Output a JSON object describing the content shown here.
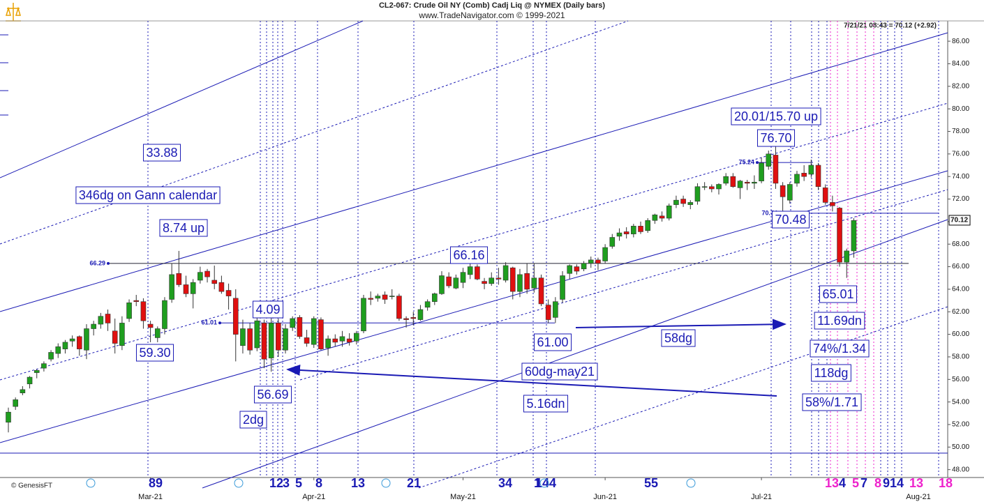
{
  "chart_data": {
    "type": "candlestick",
    "title": "CL2-067:  Crude Oil NY (Comb) Cadj Liq @ NYMEX  (Daily bars)",
    "subtitle": "www.TradeNavigator.com © 1999-2021",
    "last_quote": "7/21/21 08:43 = 70.12 (+2.92)",
    "credit": "© GenesisFT",
    "up_color": "#1f9e1f",
    "down_color": "#e01010",
    "ylim": [
      47.3,
      87.8
    ],
    "yticks": [
      {
        "value": 48,
        "label": "48.00"
      },
      {
        "value": 50,
        "label": "50.00"
      },
      {
        "value": 52,
        "label": "52.00"
      },
      {
        "value": 54,
        "label": "54.00"
      },
      {
        "value": 56,
        "label": "56.00"
      },
      {
        "value": 58,
        "label": "58.00"
      },
      {
        "value": 60,
        "label": "60.00"
      },
      {
        "value": 62,
        "label": "62.00"
      },
      {
        "value": 64,
        "label": "64.00"
      },
      {
        "value": 66,
        "label": "66.00"
      },
      {
        "value": 68,
        "label": "68.00"
      },
      {
        "value": 70,
        "label": "70.00"
      },
      {
        "value": 72,
        "label": "72.00"
      },
      {
        "value": 74,
        "label": "74.00"
      },
      {
        "value": 76,
        "label": "76.00"
      },
      {
        "value": 78,
        "label": "78.00"
      },
      {
        "value": 80,
        "label": "80.00"
      },
      {
        "value": 82,
        "label": "82.00"
      },
      {
        "value": 84,
        "label": "84.00"
      },
      {
        "value": 86,
        "label": "86.00"
      }
    ],
    "last_price": 70.12,
    "levels": [
      66.29,
      61.01,
      75.24,
      70.74
    ],
    "categories": [
      null,
      null,
      null,
      null,
      null,
      null,
      null,
      null,
      null,
      null,
      null,
      null,
      null,
      null,
      null,
      null,
      null,
      null,
      null,
      null,
      "Mar-21",
      null,
      null,
      null,
      null,
      null,
      null,
      null,
      null,
      null,
      null,
      null,
      null,
      null,
      null,
      null,
      null,
      null,
      null,
      null,
      null,
      null,
      null,
      "Apr-21",
      null,
      null,
      null,
      null,
      null,
      null,
      null,
      null,
      null,
      null,
      null,
      null,
      null,
      null,
      null,
      null,
      null,
      null,
      null,
      null,
      "May-21",
      null,
      null,
      null,
      null,
      null,
      null,
      null,
      null,
      null,
      null,
      null,
      null,
      null,
      null,
      null,
      null,
      null,
      null,
      null,
      "Jun-21",
      null,
      null,
      null,
      null,
      null,
      null,
      null,
      null,
      null,
      null,
      null,
      null,
      null,
      null,
      null,
      null,
      null,
      null,
      null,
      null,
      null,
      "Jul-21",
      null,
      null,
      null,
      null,
      null,
      null,
      null,
      null,
      null,
      null,
      null,
      null,
      null
    ],
    "extra_month_label": "Aug-21",
    "open": [
      52.2,
      53.6,
      54.8,
      55.6,
      56.6,
      57.0,
      57.8,
      58.3,
      58.7,
      59.4,
      59.8,
      58.6,
      60.5,
      60.9,
      61.8,
      60.3,
      59.0,
      61.4,
      63.0,
      62.9,
      60.9,
      59.7,
      60.5,
      63.1,
      65.4,
      64.4,
      63.6,
      64.8,
      65.6,
      64.8,
      64.6,
      63.9,
      63.2,
      59.0,
      60.5,
      58.8,
      61.0,
      57.9,
      61.0,
      58.6,
      60.6,
      61.5,
      59.7,
      59.1,
      61.3,
      58.8,
      59.6,
      59.4,
      59.6,
      59.4,
      60.3,
      63.2,
      63.2,
      63.5,
      63.4,
      63.4,
      61.4,
      61.5,
      61.3,
      62.4,
      62.9,
      63.6,
      65.1,
      64.1,
      64.6,
      65.3,
      66.0,
      64.7,
      64.5,
      65.0,
      64.8,
      65.9,
      63.8,
      65.4,
      64.1,
      65.0,
      62.6,
      61.5,
      63.1,
      65.4,
      66.0,
      65.8,
      66.3,
      66.6,
      66.5,
      67.8,
      68.7,
      69.1,
      68.9,
      69.6,
      69.2,
      70.1,
      70.5,
      70.3,
      71.5,
      72.0,
      71.5,
      71.8,
      73.1,
      73.1,
      72.9,
      73.4,
      74.0,
      73.0,
      73.5,
      73.4,
      73.6,
      74.9,
      75.9,
      73.2,
      71.9,
      73.4,
      74.3,
      74.2,
      75.0,
      73.0,
      71.7,
      71.2,
      66.4,
      67.4
    ],
    "high": [
      53.5,
      54.4,
      55.4,
      56.3,
      56.9,
      57.6,
      58.6,
      59.2,
      59.5,
      59.9,
      59.9,
      60.9,
      61.2,
      61.9,
      62.2,
      61.4,
      61.6,
      63.1,
      63.5,
      63.2,
      61.2,
      60.7,
      63.3,
      66.3,
      67.4,
      65.2,
      64.9,
      66.0,
      65.8,
      66.1,
      65.2,
      64.5,
      64.0,
      61.3,
      61.0,
      61.5,
      61.3,
      61.5,
      61.4,
      60.9,
      61.6,
      61.7,
      60.4,
      61.6,
      61.5,
      59.9,
      60.0,
      60.3,
      60.1,
      60.3,
      63.5,
      63.8,
      63.6,
      63.8,
      64.0,
      63.6,
      61.6,
      62.0,
      62.6,
      63.1,
      63.7,
      65.6,
      65.5,
      65.3,
      65.9,
      66.5,
      66.2,
      65.0,
      65.5,
      65.9,
      66.4,
      66.0,
      65.8,
      66.3,
      66.3,
      65.3,
      63.1,
      63.3,
      65.6,
      66.2,
      66.2,
      66.5,
      66.9,
      66.8,
      68.0,
      68.9,
      69.4,
      69.5,
      69.8,
      70.0,
      70.3,
      70.7,
      70.9,
      71.6,
      72.3,
      72.3,
      71.9,
      73.4,
      73.5,
      73.3,
      73.4,
      74.3,
      74.3,
      73.7,
      73.7,
      74.1,
      75.7,
      76.3,
      76.7,
      73.5,
      73.5,
      74.5,
      75.0,
      75.5,
      75.2,
      73.3,
      72.3,
      71.3,
      67.6,
      70.3
    ],
    "low": [
      51.3,
      53.3,
      54.6,
      55.2,
      56.1,
      56.7,
      57.6,
      57.9,
      58.3,
      58.9,
      58.1,
      57.8,
      59.9,
      60.5,
      60.3,
      58.3,
      58.6,
      61.1,
      62.5,
      60.5,
      59.3,
      59.3,
      60.0,
      62.8,
      64.2,
      63.3,
      62.3,
      64.5,
      64.6,
      64.0,
      63.6,
      62.2,
      57.6,
      58.3,
      58.2,
      58.5,
      57.0,
      56.69,
      58.0,
      58.3,
      60.3,
      59.6,
      58.9,
      58.8,
      58.6,
      58.1,
      58.9,
      58.9,
      59.0,
      59.1,
      60.1,
      62.6,
      62.9,
      62.7,
      63.1,
      61.2,
      60.6,
      60.8,
      61.2,
      62.1,
      62.6,
      63.5,
      64.1,
      64.0,
      64.1,
      64.9,
      64.8,
      64.0,
      64.3,
      64.4,
      64.6,
      63.1,
      63.3,
      63.6,
      63.7,
      62.5,
      61.0,
      61.0,
      62.8,
      64.9,
      65.3,
      65.6,
      65.9,
      65.7,
      66.3,
      67.6,
      68.3,
      68.5,
      68.6,
      68.9,
      69.0,
      69.8,
      70.0,
      70.1,
      71.2,
      71.3,
      71.1,
      71.5,
      72.8,
      72.6,
      72.4,
      73.2,
      73.0,
      72.0,
      72.8,
      72.9,
      73.4,
      74.6,
      72.9,
      70.5,
      71.6,
      73.1,
      73.6,
      73.9,
      72.8,
      71.5,
      70.9,
      66.0,
      65.01,
      66.8
    ],
    "close": [
      53.1,
      54.2,
      55.1,
      56.2,
      56.8,
      57.4,
      58.4,
      58.9,
      59.3,
      59.6,
      58.7,
      60.5,
      60.9,
      61.6,
      61.0,
      59.2,
      61.0,
      62.8,
      62.9,
      61.2,
      60.6,
      60.5,
      63.0,
      65.3,
      64.4,
      63.6,
      64.6,
      65.5,
      65.1,
      64.5,
      63.8,
      63.4,
      60.0,
      60.5,
      58.6,
      61.2,
      57.8,
      61.0,
      58.6,
      60.5,
      61.4,
      59.8,
      59.2,
      61.4,
      58.7,
      59.6,
      59.3,
      59.8,
      59.3,
      60.1,
      63.2,
      63.1,
      63.4,
      63.1,
      63.4,
      61.4,
      61.3,
      61.4,
      62.2,
      62.9,
      63.6,
      65.2,
      64.3,
      65.0,
      65.5,
      66.0,
      64.9,
      64.5,
      65.0,
      64.9,
      66.1,
      63.8,
      65.3,
      64.0,
      65.0,
      62.7,
      61.3,
      62.9,
      65.2,
      66.1,
      65.6,
      66.3,
      66.6,
      66.3,
      67.7,
      68.6,
      69.0,
      68.9,
      69.6,
      69.1,
      70.1,
      70.6,
      70.3,
      71.4,
      71.9,
      71.6,
      71.7,
      73.1,
      73.1,
      72.9,
      73.3,
      74.0,
      73.1,
      73.6,
      73.4,
      73.5,
      75.2,
      76.0,
      73.4,
      72.2,
      73.3,
      74.2,
      74.0,
      75.0,
      73.1,
      71.7,
      71.4,
      66.4,
      67.4,
      70.1
    ],
    "annotations": [
      "33.88",
      "346dg on Gann calendar",
      "8.74 up",
      "59.30",
      "4.09",
      "56.69",
      "2dg",
      "66.16",
      "61.00",
      "58dg",
      "60dg-may21",
      "5.16dn",
      "20.01/15.70 up",
      "76.70",
      "70.48",
      "65.01",
      "11.69dn",
      "74%/1.34",
      "118dg",
      "58%/1.71"
    ],
    "cycle_labels": [
      "89",
      "1",
      "2",
      "3",
      "5",
      "8",
      "13",
      "21",
      "34",
      "1",
      "144",
      "55",
      "13",
      "4",
      "5",
      "7",
      "8",
      "9",
      "14",
      "13",
      "18"
    ]
  }
}
